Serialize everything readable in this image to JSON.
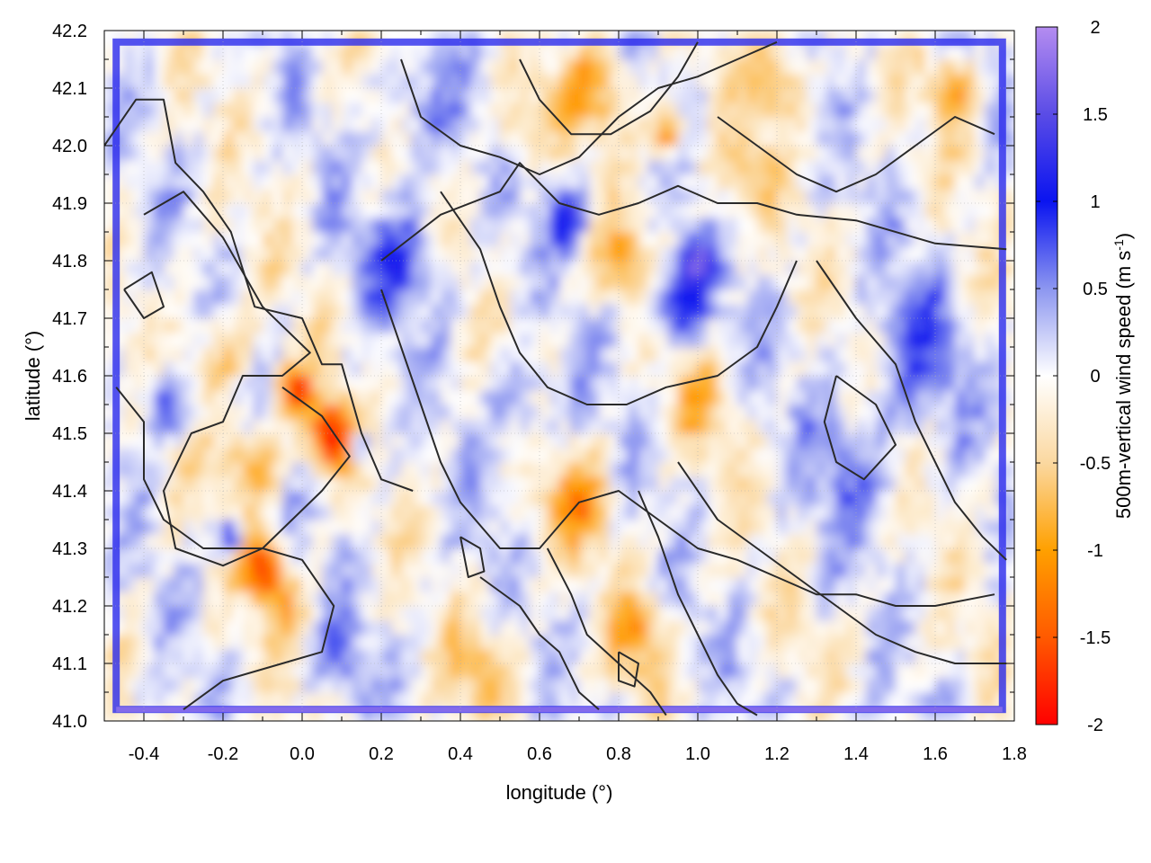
{
  "chart_data": {
    "type": "heatmap",
    "title": "",
    "xlabel": "longitude (°)",
    "ylabel": "latitude (°)",
    "colorbar_label": "500m-vertical wind speed (m s",
    "colorbar_label_sup": "-1",
    "colorbar_label_end": ")",
    "xlim": [
      -0.5,
      1.8
    ],
    "ylim": [
      41.0,
      42.2
    ],
    "x_ticks": [
      "-0.4",
      "-0.2",
      "0.0",
      "0.2",
      "0.4",
      "0.6",
      "0.8",
      "1.0",
      "1.2",
      "1.4",
      "1.6",
      "1.8"
    ],
    "x_tick_values": [
      -0.4,
      -0.2,
      0.0,
      0.2,
      0.4,
      0.6,
      0.8,
      1.0,
      1.2,
      1.4,
      1.6,
      1.8
    ],
    "y_ticks": [
      "41.0",
      "41.1",
      "41.2",
      "41.3",
      "41.4",
      "41.5",
      "41.6",
      "41.7",
      "41.8",
      "41.9",
      "42.0",
      "42.1",
      "42.2"
    ],
    "y_tick_values": [
      41.0,
      41.1,
      41.2,
      41.3,
      41.4,
      41.5,
      41.6,
      41.7,
      41.8,
      41.9,
      42.0,
      42.1,
      42.2
    ],
    "colorbar_range": [
      -2,
      2
    ],
    "colorbar_ticks": [
      "2",
      "1.5",
      "1",
      "0.5",
      "0",
      "-0.5",
      "-1",
      "-1.5",
      "-2"
    ],
    "colorbar_tick_values": [
      2,
      1.5,
      1,
      0.5,
      0,
      -0.5,
      -1,
      -1.5,
      -2
    ],
    "colormap": [
      {
        "value": 2.0,
        "color": "#b48cf0"
      },
      {
        "value": 1.5,
        "color": "#5a4ce6"
      },
      {
        "value": 1.0,
        "color": "#0a14f0"
      },
      {
        "value": 0.5,
        "color": "#8c96f0"
      },
      {
        "value": 0.0,
        "color": "#ffffff"
      },
      {
        "value": -0.5,
        "color": "#fbd8a0"
      },
      {
        "value": -1.0,
        "color": "#ffa000"
      },
      {
        "value": -1.5,
        "color": "#ff5a00"
      },
      {
        "value": -2.0,
        "color": "#ff0000"
      }
    ],
    "grid": true,
    "features": [
      {
        "lon": 0.07,
        "lat": 41.5,
        "value": -1.9,
        "size": 0.06
      },
      {
        "lon": -0.02,
        "lat": 41.58,
        "value": -1.6,
        "size": 0.04
      },
      {
        "lon": 0.15,
        "lat": 41.48,
        "value": 1.3,
        "size": 0.03
      },
      {
        "lon": -0.1,
        "lat": 41.27,
        "value": -1.6,
        "size": 0.05
      },
      {
        "lon": -0.18,
        "lat": 41.32,
        "value": 1.7,
        "size": 0.03
      },
      {
        "lon": -0.13,
        "lat": 41.45,
        "value": -0.8,
        "size": 0.08
      },
      {
        "lon": -0.2,
        "lat": 41.64,
        "value": -0.7,
        "size": 0.07
      },
      {
        "lon": 0.95,
        "lat": 41.73,
        "value": 1.2,
        "size": 0.07
      },
      {
        "lon": 1.0,
        "lat": 41.8,
        "value": 1.3,
        "size": 0.04
      },
      {
        "lon": 0.8,
        "lat": 41.8,
        "value": -0.8,
        "size": 0.07
      },
      {
        "lon": 0.68,
        "lat": 41.88,
        "value": 1.1,
        "size": 0.05
      },
      {
        "lon": 0.92,
        "lat": 42.02,
        "value": -1.5,
        "size": 0.04
      },
      {
        "lon": 0.75,
        "lat": 42.1,
        "value": -0.9,
        "size": 0.08
      },
      {
        "lon": 1.2,
        "lat": 42.12,
        "value": -0.8,
        "size": 0.07
      },
      {
        "lon": 1.65,
        "lat": 42.1,
        "value": -0.9,
        "size": 0.06
      },
      {
        "lon": 1.55,
        "lat": 41.65,
        "value": 0.6,
        "size": 0.12
      },
      {
        "lon": 1.4,
        "lat": 41.45,
        "value": 0.5,
        "size": 0.12
      },
      {
        "lon": 0.7,
        "lat": 41.38,
        "value": -1.0,
        "size": 0.08
      },
      {
        "lon": 0.85,
        "lat": 41.15,
        "value": -0.9,
        "size": 0.07
      },
      {
        "lon": 0.45,
        "lat": 41.1,
        "value": -0.6,
        "size": 0.08
      },
      {
        "lon": 0.25,
        "lat": 41.8,
        "value": 0.7,
        "size": 0.1
      },
      {
        "lon": -0.35,
        "lat": 41.55,
        "value": 0.8,
        "size": 0.06
      },
      {
        "lon": 0.3,
        "lat": 42.05,
        "value": 0.5,
        "size": 0.1
      },
      {
        "lon": 0.55,
        "lat": 42.05,
        "value": -0.6,
        "size": 0.07
      },
      {
        "lon": 1.1,
        "lat": 41.95,
        "value": -0.5,
        "size": 0.08
      },
      {
        "lon": 0.55,
        "lat": 41.55,
        "value": 0.6,
        "size": 0.08
      },
      {
        "lon": 1.0,
        "lat": 41.55,
        "value": -0.6,
        "size": 0.07
      },
      {
        "lon": -0.05,
        "lat": 41.2,
        "value": -0.7,
        "size": 0.06
      },
      {
        "lon": 0.1,
        "lat": 41.1,
        "value": 0.5,
        "size": 0.07
      }
    ],
    "contours": [
      [
        [
          -0.5,
          42.0
        ],
        [
          -0.42,
          42.08
        ],
        [
          -0.35,
          42.08
        ],
        [
          -0.32,
          41.97
        ],
        [
          -0.25,
          41.92
        ],
        [
          -0.18,
          41.85
        ],
        [
          -0.12,
          41.72
        ],
        [
          0.0,
          41.7
        ],
        [
          0.05,
          41.62
        ],
        [
          0.1,
          41.62
        ],
        [
          0.15,
          41.5
        ],
        [
          0.2,
          41.42
        ],
        [
          0.28,
          41.4
        ]
      ],
      [
        [
          -0.4,
          41.88
        ],
        [
          -0.3,
          41.92
        ],
        [
          -0.2,
          41.84
        ],
        [
          -0.1,
          41.72
        ],
        [
          0.02,
          41.64
        ],
        [
          -0.05,
          41.6
        ],
        [
          -0.15,
          41.6
        ],
        [
          -0.2,
          41.52
        ],
        [
          -0.28,
          41.5
        ],
        [
          -0.35,
          41.4
        ],
        [
          -0.32,
          41.3
        ],
        [
          -0.2,
          41.27
        ],
        [
          -0.1,
          41.3
        ],
        [
          0.05,
          41.4
        ],
        [
          0.12,
          41.46
        ],
        [
          0.05,
          41.53
        ],
        [
          -0.05,
          41.58
        ]
      ],
      [
        [
          -0.47,
          41.58
        ],
        [
          -0.4,
          41.52
        ],
        [
          -0.4,
          41.42
        ],
        [
          -0.35,
          41.35
        ],
        [
          -0.25,
          41.3
        ],
        [
          -0.1,
          41.3
        ],
        [
          0.0,
          41.28
        ],
        [
          0.08,
          41.2
        ],
        [
          0.05,
          41.12
        ],
        [
          -0.05,
          41.1
        ],
        [
          -0.2,
          41.07
        ],
        [
          -0.3,
          41.02
        ]
      ],
      [
        [
          0.2,
          41.8
        ],
        [
          0.35,
          41.88
        ],
        [
          0.5,
          41.92
        ],
        [
          0.55,
          41.97
        ],
        [
          0.65,
          41.9
        ],
        [
          0.75,
          41.88
        ],
        [
          0.85,
          41.9
        ],
        [
          0.95,
          41.93
        ],
        [
          1.05,
          41.9
        ],
        [
          1.15,
          41.9
        ],
        [
          1.25,
          41.88
        ],
        [
          1.4,
          41.87
        ],
        [
          1.6,
          41.83
        ],
        [
          1.78,
          41.82
        ]
      ],
      [
        [
          0.2,
          41.75
        ],
        [
          0.25,
          41.65
        ],
        [
          0.3,
          41.55
        ],
        [
          0.35,
          41.45
        ],
        [
          0.4,
          41.38
        ],
        [
          0.5,
          41.3
        ],
        [
          0.6,
          41.3
        ],
        [
          0.7,
          41.38
        ],
        [
          0.8,
          41.4
        ],
        [
          0.9,
          41.35
        ],
        [
          1.0,
          41.3
        ],
        [
          1.1,
          41.28
        ],
        [
          1.2,
          41.25
        ],
        [
          1.3,
          41.22
        ],
        [
          1.4,
          41.22
        ],
        [
          1.5,
          41.2
        ],
        [
          1.6,
          41.2
        ],
        [
          1.75,
          41.22
        ]
      ],
      [
        [
          0.35,
          41.92
        ],
        [
          0.45,
          41.82
        ],
        [
          0.5,
          41.72
        ],
        [
          0.55,
          41.64
        ],
        [
          0.62,
          41.58
        ],
        [
          0.72,
          41.55
        ],
        [
          0.82,
          41.55
        ],
        [
          0.92,
          41.58
        ],
        [
          1.05,
          41.6
        ],
        [
          1.15,
          41.65
        ],
        [
          1.2,
          41.72
        ],
        [
          1.25,
          41.8
        ]
      ],
      [
        [
          0.45,
          41.25
        ],
        [
          0.55,
          41.2
        ],
        [
          0.6,
          41.15
        ],
        [
          0.65,
          41.12
        ],
        [
          0.7,
          41.05
        ],
        [
          0.75,
          41.02
        ]
      ],
      [
        [
          0.62,
          41.3
        ],
        [
          0.68,
          41.22
        ],
        [
          0.72,
          41.15
        ],
        [
          0.8,
          41.1
        ],
        [
          0.88,
          41.05
        ],
        [
          0.92,
          41.01
        ]
      ],
      [
        [
          0.85,
          41.4
        ],
        [
          0.9,
          41.32
        ],
        [
          0.95,
          41.22
        ],
        [
          1.0,
          41.15
        ],
        [
          1.05,
          41.08
        ],
        [
          1.1,
          41.03
        ],
        [
          1.15,
          41.01
        ]
      ],
      [
        [
          0.95,
          41.45
        ],
        [
          1.05,
          41.35
        ],
        [
          1.15,
          41.3
        ],
        [
          1.25,
          41.25
        ],
        [
          1.35,
          41.2
        ],
        [
          1.45,
          41.15
        ],
        [
          1.55,
          41.12
        ],
        [
          1.65,
          41.1
        ],
        [
          1.78,
          41.1
        ]
      ],
      [
        [
          0.25,
          42.15
        ],
        [
          0.3,
          42.05
        ],
        [
          0.4,
          42.0
        ],
        [
          0.5,
          41.98
        ],
        [
          0.6,
          41.95
        ],
        [
          0.7,
          41.98
        ],
        [
          0.8,
          42.05
        ],
        [
          0.9,
          42.1
        ],
        [
          1.0,
          42.12
        ],
        [
          1.1,
          42.15
        ],
        [
          1.2,
          42.18
        ]
      ],
      [
        [
          0.55,
          42.15
        ],
        [
          0.6,
          42.08
        ],
        [
          0.68,
          42.02
        ],
        [
          0.78,
          42.02
        ],
        [
          0.88,
          42.06
        ],
        [
          0.95,
          42.12
        ],
        [
          1.0,
          42.18
        ]
      ],
      [
        [
          1.05,
          42.05
        ],
        [
          1.15,
          42.0
        ],
        [
          1.25,
          41.95
        ],
        [
          1.35,
          41.92
        ],
        [
          1.45,
          41.95
        ],
        [
          1.55,
          42.0
        ],
        [
          1.65,
          42.05
        ],
        [
          1.75,
          42.02
        ]
      ],
      [
        [
          1.3,
          41.8
        ],
        [
          1.4,
          41.7
        ],
        [
          1.5,
          41.62
        ],
        [
          1.55,
          41.52
        ],
        [
          1.6,
          41.45
        ],
        [
          1.65,
          41.38
        ],
        [
          1.72,
          41.32
        ],
        [
          1.78,
          41.28
        ]
      ],
      [
        [
          1.35,
          41.6
        ],
        [
          1.45,
          41.55
        ],
        [
          1.5,
          41.48
        ],
        [
          1.42,
          41.42
        ],
        [
          1.35,
          41.45
        ],
        [
          1.32,
          41.52
        ],
        [
          1.35,
          41.6
        ]
      ],
      [
        [
          -0.45,
          41.75
        ],
        [
          -0.4,
          41.7
        ],
        [
          -0.35,
          41.72
        ],
        [
          -0.38,
          41.78
        ],
        [
          -0.45,
          41.75
        ]
      ],
      [
        [
          0.4,
          41.32
        ],
        [
          0.45,
          41.3
        ],
        [
          0.46,
          41.26
        ],
        [
          0.42,
          41.25
        ],
        [
          0.4,
          41.32
        ]
      ],
      [
        [
          0.8,
          41.12
        ],
        [
          0.85,
          41.1
        ],
        [
          0.84,
          41.06
        ],
        [
          0.8,
          41.07
        ],
        [
          0.8,
          41.12
        ]
      ]
    ]
  }
}
